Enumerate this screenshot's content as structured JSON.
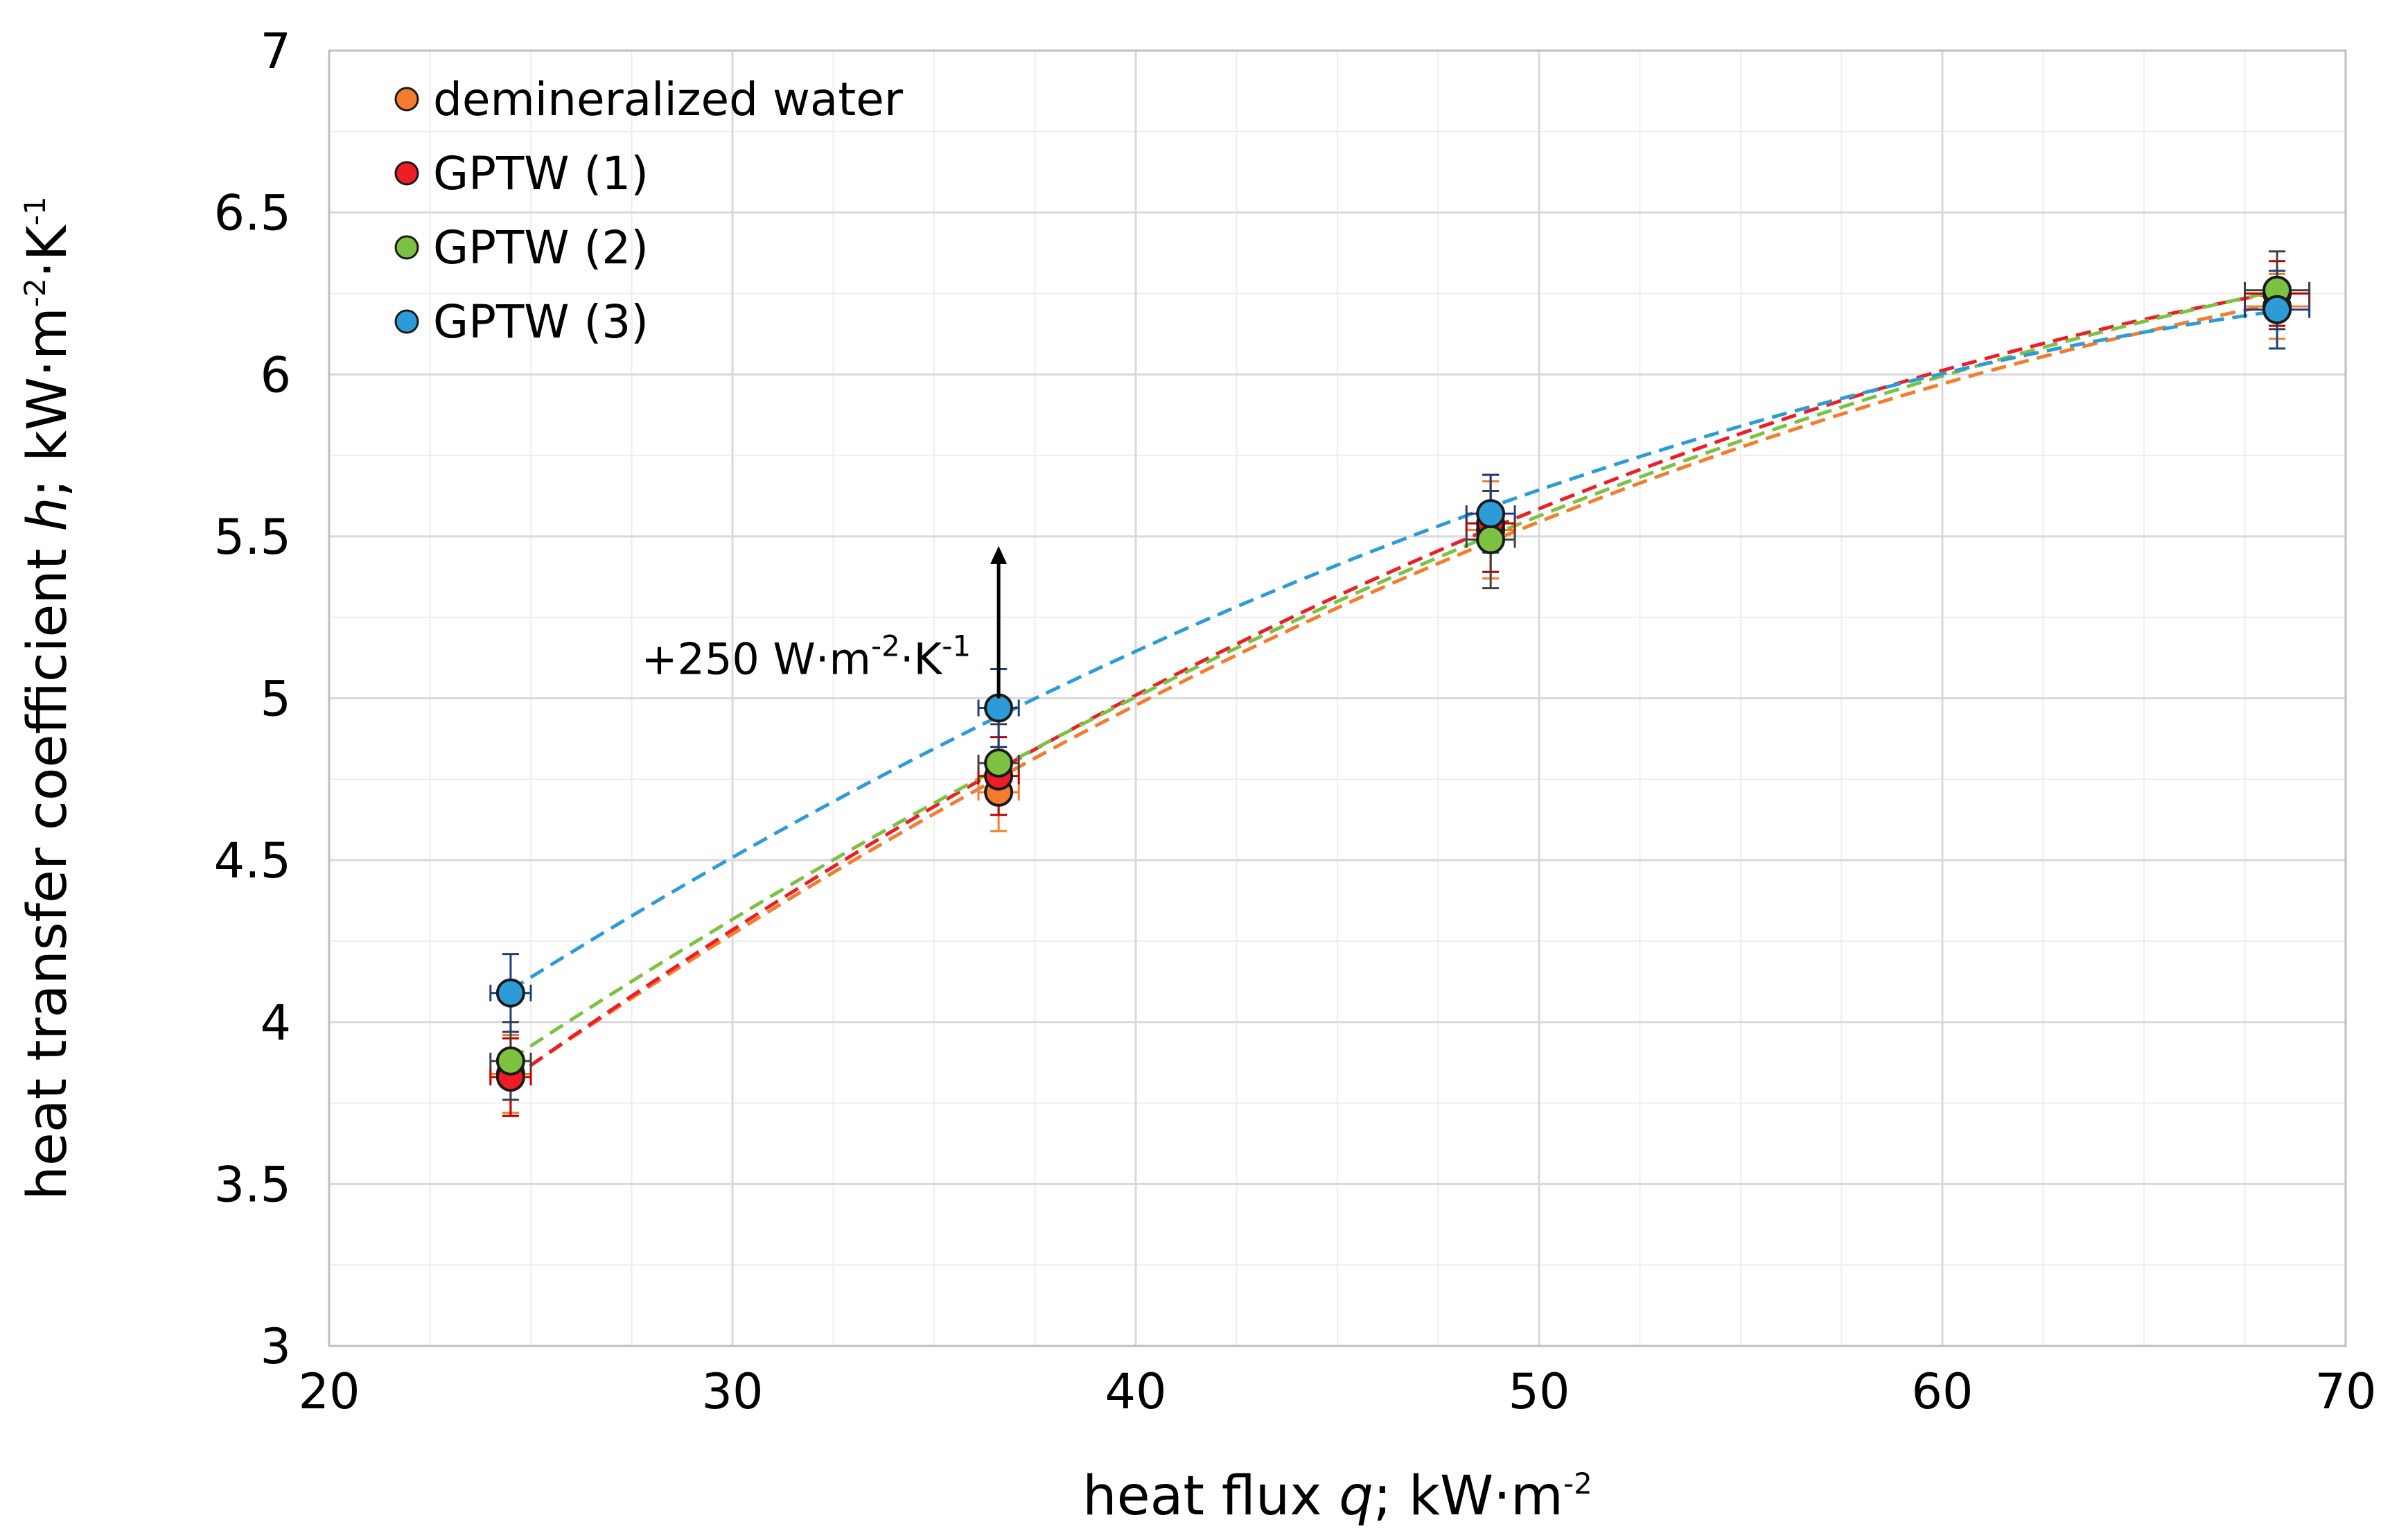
{
  "chart_data": {
    "type": "scatter",
    "xlabel": {
      "pre": "heat flux ",
      "var": "q",
      "post": "; kW·m",
      "sup": "-2"
    },
    "ylabel": {
      "pre": "heat transfer coefficient ",
      "var": "h",
      "post": "; kW·m",
      "sup1": "-2",
      "mid": "·K",
      "sup2": "-1"
    },
    "xlim": [
      20,
      70
    ],
    "ylim": [
      3,
      7
    ],
    "x_major": 10,
    "y_major": 0.5,
    "x_minor": 2.5,
    "y_minor": 0.25,
    "xticks": [
      "20",
      "30",
      "40",
      "50",
      "60",
      "70"
    ],
    "yticks": [
      "3",
      "3.5",
      "4",
      "4.5",
      "5",
      "5.5",
      "6",
      "6.5",
      "7"
    ],
    "legend_position": "top-left",
    "series": [
      {
        "name": "demineralized water",
        "color": "#f47c2c",
        "x": [
          24.5,
          36.6,
          48.8,
          68.3
        ],
        "y": [
          3.84,
          4.71,
          5.52,
          6.21
        ],
        "yerr": [
          0.12,
          0.12,
          0.15,
          0.1
        ],
        "xerr": [
          0.5,
          0.5,
          0.6,
          0.8
        ]
      },
      {
        "name": "GPTW (1)",
        "color": "#ee1c24",
        "x": [
          24.5,
          36.6,
          48.8,
          68.3
        ],
        "y": [
          3.83,
          4.76,
          5.54,
          6.25
        ],
        "yerr": [
          0.12,
          0.12,
          0.15,
          0.1
        ],
        "xerr": [
          0.5,
          0.5,
          0.6,
          0.8
        ]
      },
      {
        "name": "GPTW (2)",
        "color": "#7cc142",
        "x": [
          24.5,
          36.6,
          48.8,
          68.3
        ],
        "y": [
          3.88,
          4.8,
          5.49,
          6.26
        ],
        "yerr": [
          0.12,
          0.12,
          0.15,
          0.12
        ],
        "xerr": [
          0.5,
          0.5,
          0.6,
          0.8
        ]
      },
      {
        "name": "GPTW (3)",
        "color": "#2d9bd7",
        "x": [
          24.5,
          36.6,
          48.8,
          68.3
        ],
        "y": [
          4.09,
          4.97,
          5.57,
          6.2
        ],
        "yerr": [
          0.12,
          0.12,
          0.12,
          0.12
        ],
        "xerr": [
          0.5,
          0.5,
          0.6,
          0.8
        ]
      }
    ],
    "annotation": {
      "text": "+250 W·m",
      "sup1": "-2",
      "mid": "·K",
      "sup2": "-1",
      "x": 36.6,
      "y_from": 5.0,
      "y_to": 5.47
    }
  }
}
